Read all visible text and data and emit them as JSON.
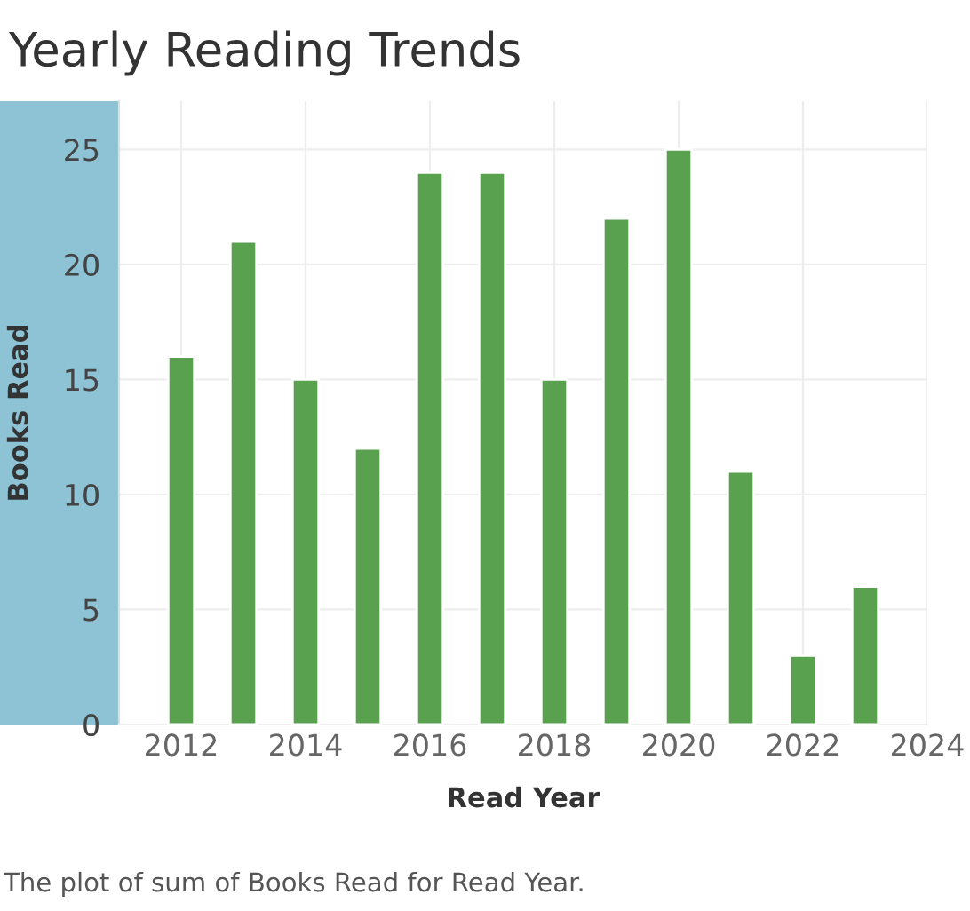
{
  "chart_data": {
    "type": "bar",
    "title": "Yearly Reading Trends",
    "xlabel": "Read Year",
    "ylabel": "Books Read",
    "x": [
      2012,
      2013,
      2014,
      2015,
      2016,
      2017,
      2018,
      2019,
      2020,
      2021,
      2022,
      2023
    ],
    "values": [
      16,
      21,
      15,
      12,
      24,
      24,
      15,
      22,
      25,
      11,
      3,
      6
    ],
    "color": "#59a14f",
    "xlim": [
      2011,
      2024
    ],
    "xticks": [
      2012,
      2014,
      2016,
      2018,
      2020,
      2022,
      2024
    ],
    "ylim": [
      0,
      27.1
    ],
    "yticks": [
      0,
      5,
      10,
      15,
      20,
      25
    ],
    "grid": true,
    "legend": false,
    "annotations": [
      "The plot of sum of Books Read for Read Year."
    ]
  }
}
